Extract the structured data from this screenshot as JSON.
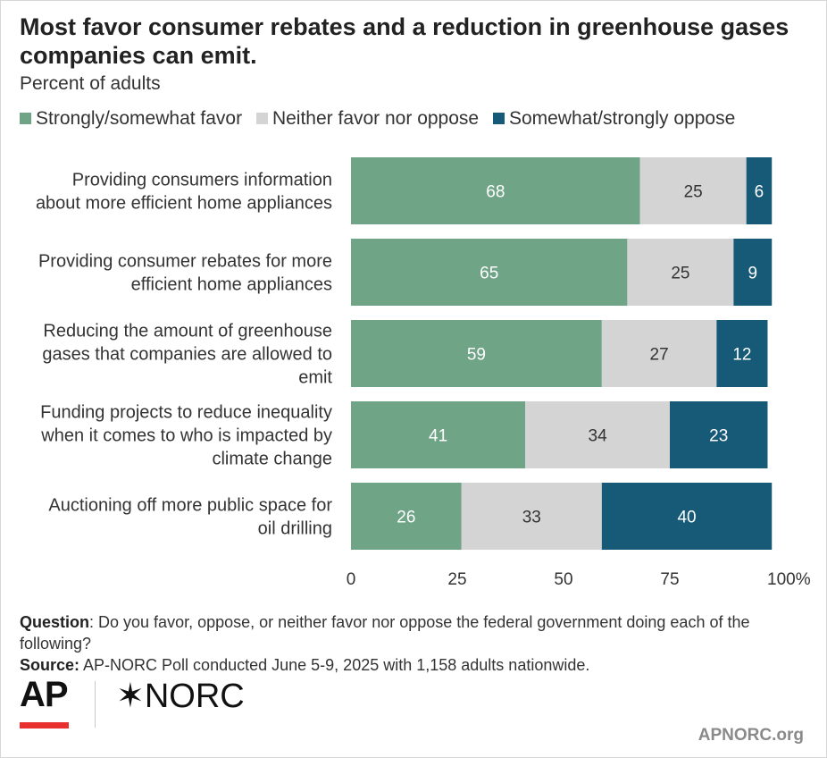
{
  "chart_data": {
    "type": "bar",
    "orientation": "horizontal",
    "stacked": true,
    "title": "Most favor consumer rebates and a reduction in greenhouse gases companies can emit.",
    "subtitle": "Percent of adults",
    "categories": [
      [
        "Providing consumers information",
        "about more efficient home appliances"
      ],
      [
        "Providing consumer rebates for more",
        "efficient home appliances"
      ],
      [
        "Reducing the amount of greenhouse",
        "gases that companies are allowed to",
        "emit"
      ],
      [
        "Funding projects to reduce inequality",
        "when it comes to who is impacted by",
        "climate change"
      ],
      [
        "Auctioning off more public space for",
        "oil drilling"
      ]
    ],
    "series": [
      {
        "name": "Strongly/somewhat favor",
        "color": "#6fa487",
        "label_color": "#ffffff",
        "values": [
          68,
          65,
          59,
          41,
          26
        ]
      },
      {
        "name": "Neither favor nor oppose",
        "color": "#d4d4d4",
        "label_color": "#333333",
        "values": [
          25,
          25,
          27,
          34,
          33
        ]
      },
      {
        "name": "Somewhat/strongly oppose",
        "color": "#165a78",
        "label_color": "#ffffff",
        "values": [
          6,
          9,
          12,
          23,
          40
        ]
      }
    ],
    "xlim": [
      0,
      100
    ],
    "xticks": [
      0,
      25,
      50,
      75,
      100
    ],
    "xtick_labels": [
      "0",
      "25",
      "50",
      "75",
      "100%"
    ],
    "legend_position": "top-left",
    "grid": false
  },
  "footer": {
    "question_label": "Question",
    "question_text": ": Do you favor, oppose, or neither favor nor oppose the federal government doing each of the following?",
    "source_label": "Source:",
    "source_text": " AP-NORC Poll conducted June 5-9, 2025 with 1,158 adults nationwide."
  },
  "branding": {
    "ap_logo": "AP",
    "norc_logo": "✶NORC",
    "website": "APNORC.org",
    "ap_red": "#e8312f"
  }
}
